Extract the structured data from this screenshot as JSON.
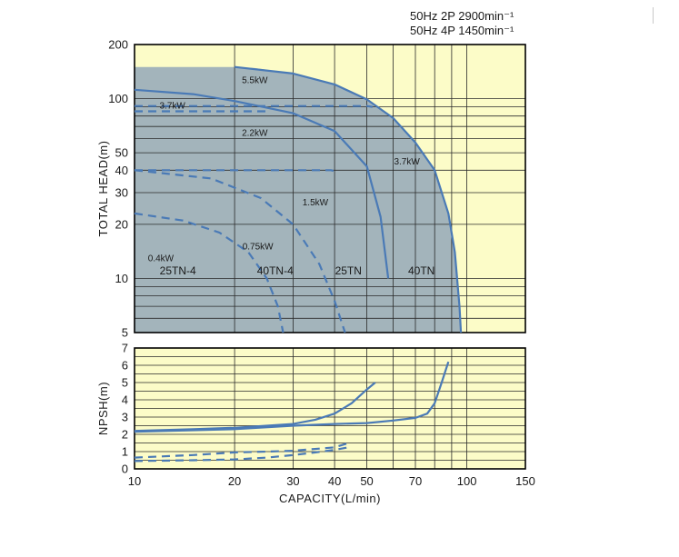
{
  "chart_data": {
    "type": "line",
    "header_lines": [
      "50Hz 2P 2900min⁻¹",
      "50Hz 4P 1450min⁻¹"
    ],
    "xlabel": "CAPACITY(L/min)",
    "x_scale": "log",
    "xlim": [
      10,
      150
    ],
    "x_ticks": [
      10,
      20,
      30,
      40,
      50,
      70,
      100,
      150
    ],
    "x_gridlines": [
      10,
      20,
      30,
      40,
      50,
      60,
      70,
      80,
      90,
      100,
      150
    ],
    "colors": {
      "plot_bg": "#fcfcc8",
      "envelope": "#a3b4bb",
      "curve": "#4a7ab6",
      "grid": "#2a2a2a"
    },
    "panels": [
      {
        "id": "head",
        "ylabel": "TOTAL HEAD(m)",
        "y_scale": "log",
        "ylim": [
          5,
          200
        ],
        "y_ticks": [
          5,
          10,
          20,
          30,
          40,
          50,
          100,
          200
        ],
        "y_gridlines": [
          5,
          6,
          7,
          8,
          9,
          10,
          20,
          30,
          40,
          50,
          60,
          70,
          80,
          90,
          100,
          200
        ],
        "envelope": [
          [
            10,
            5
          ],
          [
            10,
            150
          ],
          [
            20,
            150
          ],
          [
            23,
            148
          ],
          [
            30,
            138
          ],
          [
            40,
            120
          ],
          [
            50,
            99
          ],
          [
            60,
            78
          ],
          [
            70,
            57
          ],
          [
            80,
            40
          ],
          [
            88,
            23
          ],
          [
            92,
            14
          ],
          [
            95,
            7
          ],
          [
            96,
            5
          ]
        ],
        "series": [
          {
            "name": "40TN",
            "style": "solid",
            "points": [
              [
                20,
                150
              ],
              [
                30,
                138
              ],
              [
                40,
                120
              ],
              [
                50,
                99
              ],
              [
                60,
                78
              ],
              [
                70,
                57
              ],
              [
                80,
                40
              ],
              [
                88,
                23
              ],
              [
                92,
                14
              ],
              [
                95,
                7
              ],
              [
                96,
                5
              ]
            ]
          },
          {
            "name": "25TN",
            "style": "solid",
            "points": [
              [
                10,
                112
              ],
              [
                15,
                106
              ],
              [
                20,
                97
              ],
              [
                30,
                83
              ],
              [
                40,
                66
              ],
              [
                50,
                42
              ],
              [
                55,
                22
              ],
              [
                58,
                10
              ]
            ]
          },
          {
            "name": "40TN-4",
            "style": "dashed",
            "points": [
              [
                10,
                91
              ],
              [
                20,
                91
              ],
              [
                30,
                91
              ],
              [
                40,
                91
              ],
              [
                50,
                91
              ],
              [
                52,
                90
              ]
            ]
          },
          {
            "name": "25TN-4",
            "style": "dashed",
            "points": [
              [
                10,
                85
              ],
              [
                20,
                85
              ],
              [
                25,
                85
              ]
            ]
          },
          {
            "name": "",
            "style": "dashed",
            "points": [
              [
                10,
                40
              ],
              [
                20,
                40
              ],
              [
                30,
                40
              ],
              [
                39,
                40
              ],
              [
                41,
                39
              ]
            ]
          },
          {
            "name": "",
            "style": "dashed",
            "points": [
              [
                10,
                40
              ],
              [
                17,
                36
              ],
              [
                24,
                28
              ],
              [
                30,
                20
              ],
              [
                36,
                12
              ],
              [
                40,
                7.5
              ],
              [
                43,
                5
              ]
            ]
          },
          {
            "name": "",
            "style": "dashed",
            "points": [
              [
                10,
                23
              ],
              [
                14,
                21
              ],
              [
                18,
                18
              ],
              [
                22,
                14
              ],
              [
                25,
                10
              ],
              [
                27,
                7
              ],
              [
                28,
                5
              ]
            ]
          }
        ],
        "annotations": [
          {
            "text": "5.5kW",
            "x": 23,
            "y": 122
          },
          {
            "text": "3.7kW",
            "x": 13,
            "y": 88
          },
          {
            "text": "2.2kW",
            "x": 23,
            "y": 62
          },
          {
            "text": "3.7kW",
            "x": 66,
            "y": 43
          },
          {
            "text": "1.5kW",
            "x": 35,
            "y": 25.5
          },
          {
            "text": "0.75kW",
            "x": 23.5,
            "y": 14.5
          },
          {
            "text": "0.4kW",
            "x": 12,
            "y": 12.5
          },
          {
            "text": "25TN-4",
            "x": 13.5,
            "y": 10.5
          },
          {
            "text": "40TN-4",
            "x": 26.5,
            "y": 10.5
          },
          {
            "text": "25TN",
            "x": 44,
            "y": 10.5
          },
          {
            "text": "40TN",
            "x": 73,
            "y": 10.5
          }
        ]
      },
      {
        "id": "npsh",
        "ylabel": "NPSH(m)",
        "y_scale": "linear",
        "ylim": [
          0,
          7
        ],
        "y_ticks": [
          0,
          1,
          2,
          3,
          4,
          5,
          6,
          7
        ],
        "y_gridlines": [
          0,
          0.5,
          1,
          1.5,
          2,
          2.5,
          3,
          3.5,
          4,
          4.5,
          5,
          5.5,
          6,
          6.5,
          7
        ],
        "series": [
          {
            "name": "",
            "style": "solid",
            "points": [
              [
                10,
                2.2
              ],
              [
                15,
                2.3
              ],
              [
                20,
                2.38
              ],
              [
                30,
                2.6
              ],
              [
                35,
                2.85
              ],
              [
                40,
                3.2
              ],
              [
                45,
                3.8
              ],
              [
                50,
                4.6
              ],
              [
                53,
                5.0
              ]
            ]
          },
          {
            "name": "",
            "style": "solid",
            "points": [
              [
                10,
                2.15
              ],
              [
                20,
                2.3
              ],
              [
                30,
                2.5
              ],
              [
                40,
                2.6
              ],
              [
                50,
                2.65
              ],
              [
                60,
                2.8
              ],
              [
                70,
                2.95
              ],
              [
                76,
                3.2
              ],
              [
                80,
                3.8
              ],
              [
                84,
                5.0
              ],
              [
                88,
                6.2
              ]
            ]
          },
          {
            "name": "",
            "style": "dashed",
            "points": [
              [
                10,
                0.65
              ],
              [
                15,
                0.8
              ],
              [
                20,
                0.95
              ],
              [
                25,
                1.0
              ],
              [
                30,
                1.05
              ],
              [
                40,
                1.25
              ],
              [
                45,
                1.55
              ]
            ]
          },
          {
            "name": "",
            "style": "dashed",
            "points": [
              [
                10,
                0.45
              ],
              [
                15,
                0.5
              ],
              [
                20,
                0.55
              ],
              [
                25,
                0.65
              ],
              [
                30,
                0.8
              ],
              [
                35,
                0.95
              ],
              [
                40,
                1.1
              ],
              [
                44,
                1.25
              ]
            ]
          }
        ]
      }
    ]
  }
}
